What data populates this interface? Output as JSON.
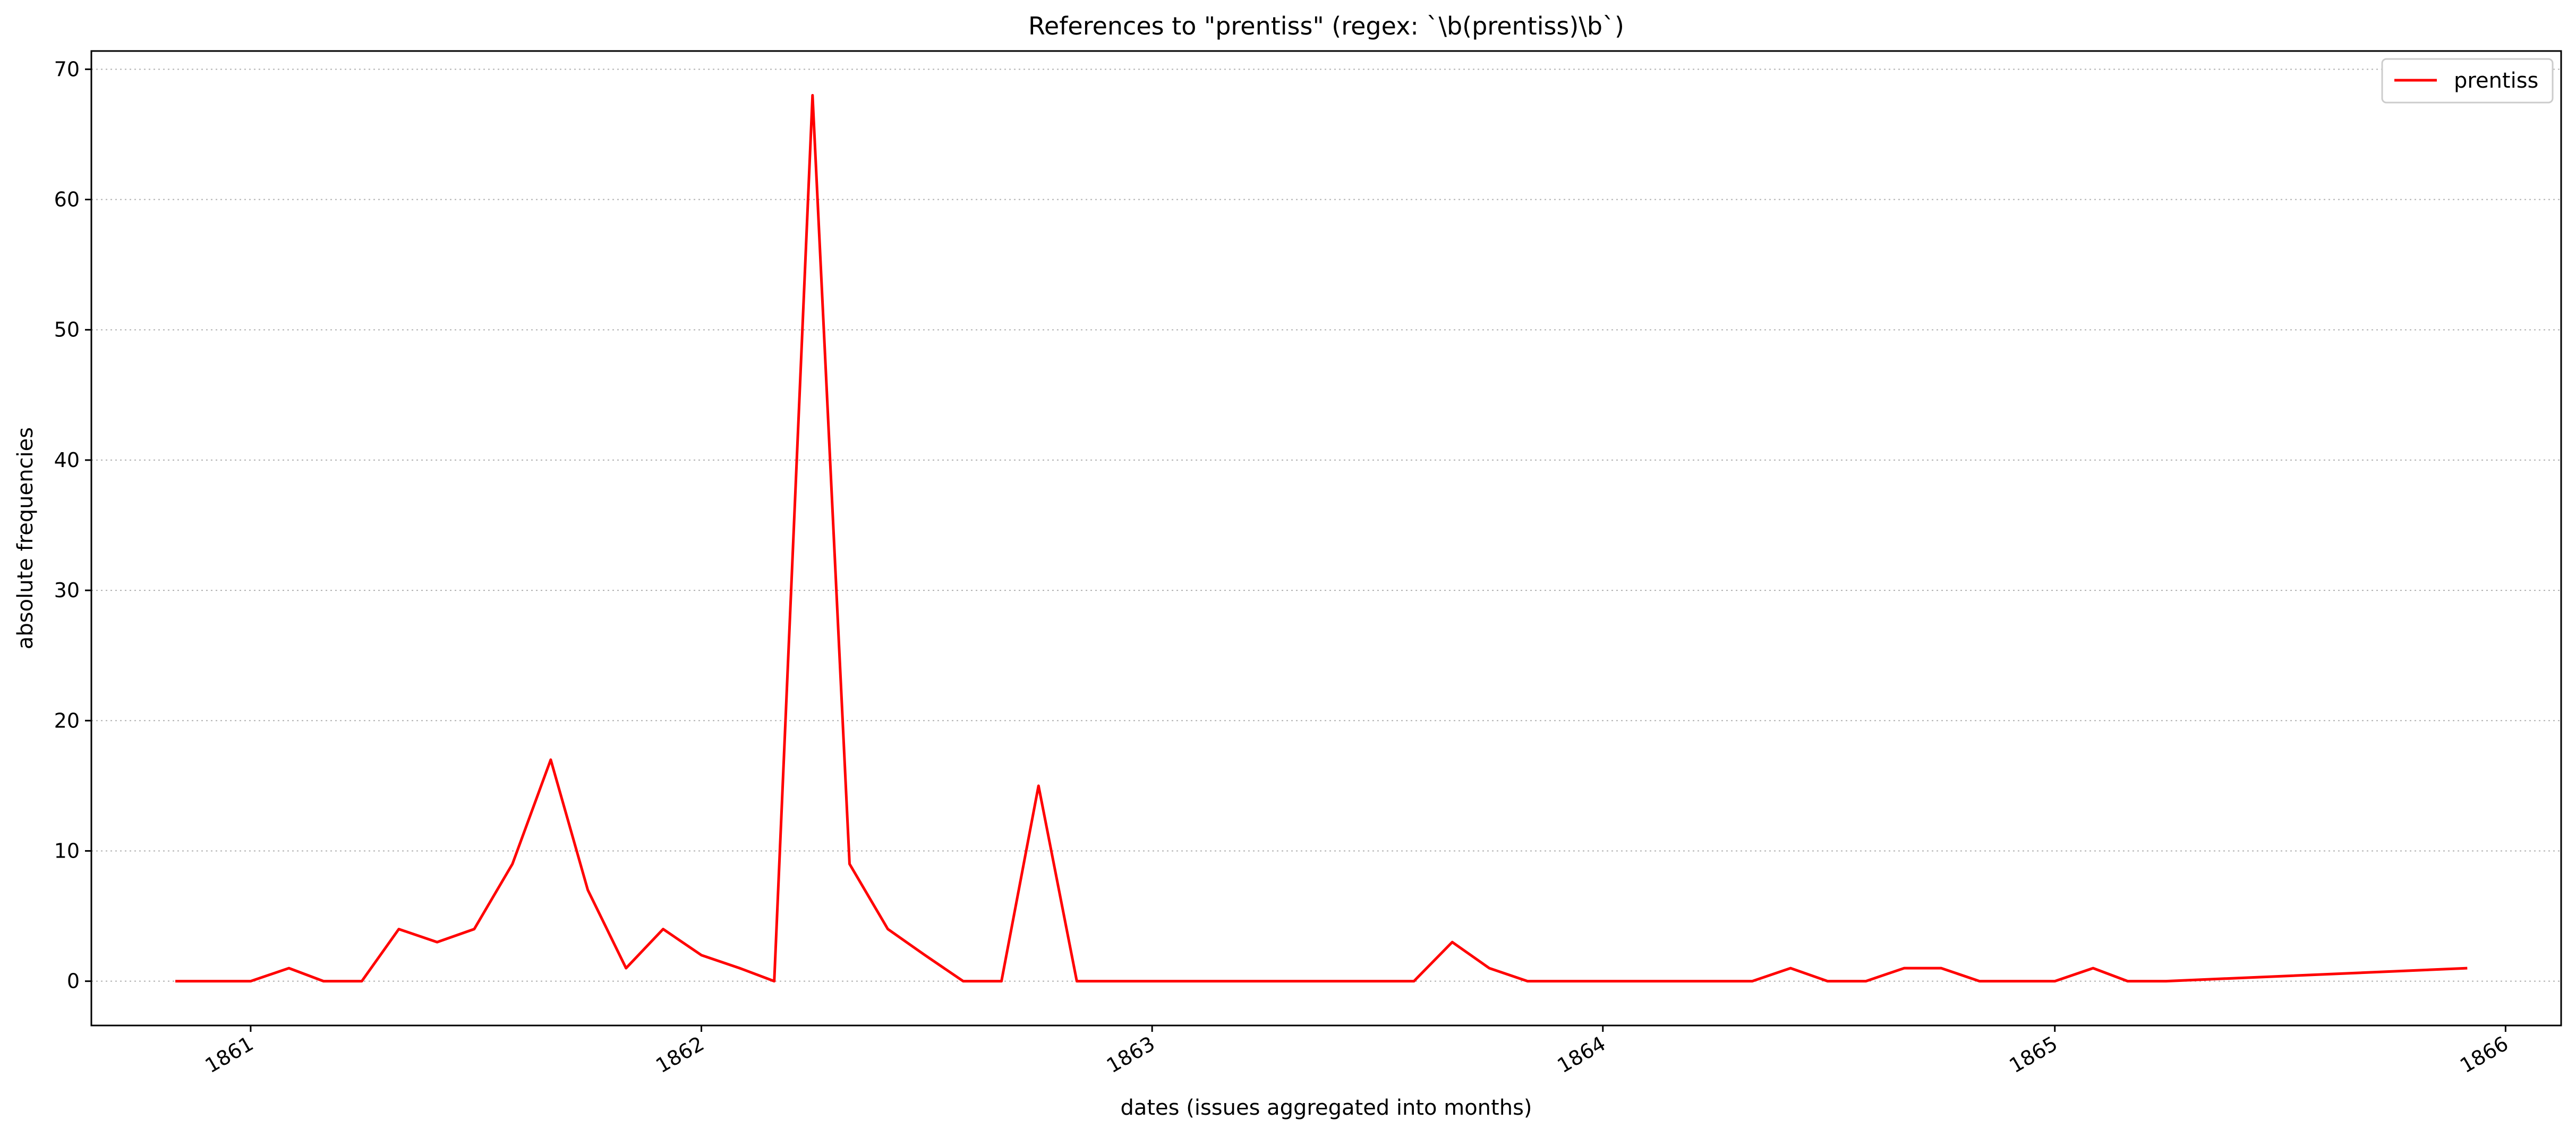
{
  "chart_data": {
    "type": "line",
    "title": "References to \"prentiss\" (regex: `\\b(prentiss)\\b`)",
    "xlabel": "dates (issues aggregated into months)",
    "ylabel": "absolute frequencies",
    "x_ticks": [
      "1861",
      "1862",
      "1863",
      "1864",
      "1865",
      "1866"
    ],
    "y_ticks": [
      "0",
      "10",
      "20",
      "30",
      "40",
      "50",
      "60",
      "70"
    ],
    "ylim": [
      -3.4,
      71.4
    ],
    "xlim": [
      "1860-08-25",
      "1866-02-15"
    ],
    "grid": "y-dotted",
    "legend": "top-right",
    "line_color": "#ff0000",
    "series": [
      {
        "name": "prentiss",
        "x": [
          "1860-11-01",
          "1860-12-01",
          "1861-01-01",
          "1861-02-01",
          "1861-03-01",
          "1861-04-01",
          "1861-05-01",
          "1861-06-01",
          "1861-07-01",
          "1861-08-01",
          "1861-09-01",
          "1861-10-01",
          "1861-11-01",
          "1861-12-01",
          "1862-01-01",
          "1862-02-01",
          "1862-03-01",
          "1862-04-01",
          "1862-05-01",
          "1862-06-01",
          "1862-07-01",
          "1862-08-01",
          "1862-09-01",
          "1862-10-01",
          "1862-11-01",
          "1862-12-01",
          "1863-01-01",
          "1863-02-01",
          "1863-03-01",
          "1863-04-01",
          "1863-05-01",
          "1863-06-01",
          "1863-07-01",
          "1863-08-01",
          "1863-09-01",
          "1863-10-01",
          "1863-11-01",
          "1863-12-01",
          "1864-01-01",
          "1864-02-01",
          "1864-03-01",
          "1864-04-01",
          "1864-05-01",
          "1864-06-01",
          "1864-07-01",
          "1864-08-01",
          "1864-09-01",
          "1864-10-01",
          "1864-11-01",
          "1864-12-01",
          "1865-01-01",
          "1865-02-01",
          "1865-03-01",
          "1865-04-01",
          "1865-12-01"
        ],
        "values": [
          0,
          0,
          0,
          1,
          0,
          0,
          4,
          3,
          4,
          9,
          17,
          7,
          1,
          4,
          2,
          1,
          0,
          68,
          9,
          4,
          2,
          0,
          0,
          15,
          0,
          0,
          0,
          0,
          0,
          0,
          0,
          0,
          0,
          0,
          3,
          1,
          0,
          0,
          0,
          0,
          0,
          0,
          0,
          1,
          0,
          0,
          1,
          1,
          0,
          0,
          0,
          1,
          0,
          0,
          1
        ]
      }
    ]
  }
}
